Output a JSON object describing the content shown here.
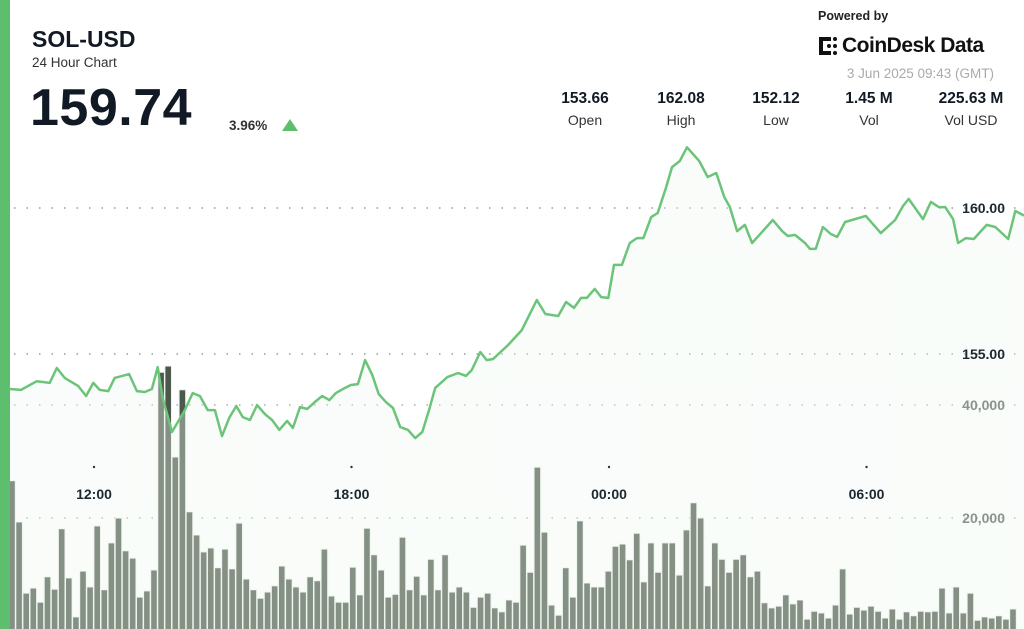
{
  "header": {
    "symbol": "SOL-USD",
    "subtitle": "24 Hour Chart",
    "price": "159.74",
    "change": "3.96%",
    "change_direction": "up"
  },
  "stats": [
    {
      "value": "153.66",
      "label": "Open"
    },
    {
      "value": "162.08",
      "label": "High"
    },
    {
      "value": "152.12",
      "label": "Low"
    },
    {
      "value": "1.45 M",
      "label": "Vol"
    },
    {
      "value": "225.63 M",
      "label": "Vol USD"
    }
  ],
  "branding": {
    "powered_by": "Powered by",
    "logo_text": "CoinDesk Data",
    "timestamp": "3 Jun 2025 09:43 (GMT)"
  },
  "colors": {
    "accent": "#5dbf6d",
    "line": "#6cc47a",
    "volume_bar": "#4d584c"
  },
  "chart_data": {
    "type": "area",
    "x_ticks": [
      "12:00",
      "18:00",
      "00:00",
      "06:00"
    ],
    "price_axis": {
      "ticks": [
        "155.00",
        "160.00"
      ],
      "tick_values": [
        155,
        160
      ]
    },
    "volume_axis": {
      "ticks": [
        "20,000",
        "40,000"
      ],
      "tick_values": [
        20000,
        40000
      ]
    },
    "grid": "dotted horizontal",
    "price_series": [
      [
        "10:03",
        153.8
      ],
      [
        "10:18",
        153.77
      ],
      [
        "10:40",
        154.07
      ],
      [
        "10:58",
        154.01
      ],
      [
        "11:08",
        154.52
      ],
      [
        "11:19",
        154.18
      ],
      [
        "11:38",
        153.9
      ],
      [
        "11:49",
        153.56
      ],
      [
        "11:59",
        154.01
      ],
      [
        "12:08",
        153.77
      ],
      [
        "12:20",
        153.73
      ],
      [
        "12:29",
        154.18
      ],
      [
        "12:49",
        154.31
      ],
      [
        "13:00",
        153.73
      ],
      [
        "13:11",
        153.7
      ],
      [
        "13:21",
        153.8
      ],
      [
        "13:29",
        154.55
      ],
      [
        "13:36",
        153.49
      ],
      [
        "13:49",
        152.33
      ],
      [
        "14:07",
        153.08
      ],
      [
        "14:18",
        153.66
      ],
      [
        "14:28",
        153.56
      ],
      [
        "14:39",
        153.08
      ],
      [
        "14:49",
        153.08
      ],
      [
        "14:59",
        152.19
      ],
      [
        "15:09",
        152.81
      ],
      [
        "15:19",
        153.22
      ],
      [
        "15:28",
        152.84
      ],
      [
        "15:38",
        152.74
      ],
      [
        "15:48",
        153.25
      ],
      [
        "15:59",
        152.94
      ],
      [
        "16:09",
        152.74
      ],
      [
        "16:19",
        152.4
      ],
      [
        "16:30",
        152.71
      ],
      [
        "16:38",
        152.47
      ],
      [
        "16:48",
        153.18
      ],
      [
        "16:58",
        153.12
      ],
      [
        "17:09",
        153.36
      ],
      [
        "17:19",
        153.56
      ],
      [
        "17:29",
        153.42
      ],
      [
        "17:38",
        153.66
      ],
      [
        "17:50",
        153.83
      ],
      [
        "17:59",
        153.94
      ],
      [
        "18:09",
        153.97
      ],
      [
        "18:19",
        154.79
      ],
      [
        "18:29",
        154.28
      ],
      [
        "18:38",
        153.63
      ],
      [
        "18:48",
        153.36
      ],
      [
        "18:58",
        153.15
      ],
      [
        "19:08",
        152.5
      ],
      [
        "19:19",
        152.4
      ],
      [
        "19:29",
        152.12
      ],
      [
        "19:39",
        152.33
      ],
      [
        "19:48",
        153.05
      ],
      [
        "19:57",
        153.84
      ],
      [
        "20:14",
        154.21
      ],
      [
        "20:29",
        154.35
      ],
      [
        "20:40",
        154.25
      ],
      [
        "20:48",
        154.45
      ],
      [
        "21:00",
        155.07
      ],
      [
        "21:09",
        154.79
      ],
      [
        "21:18",
        154.83
      ],
      [
        "21:39",
        155.31
      ],
      [
        "21:58",
        155.82
      ],
      [
        "22:19",
        156.85
      ],
      [
        "22:31",
        156.37
      ],
      [
        "22:49",
        156.3
      ],
      [
        "23:00",
        156.78
      ],
      [
        "23:11",
        156.58
      ],
      [
        "23:21",
        156.92
      ],
      [
        "23:29",
        156.92
      ],
      [
        "23:40",
        157.23
      ],
      [
        "23:49",
        156.95
      ],
      [
        "23:59",
        156.92
      ],
      [
        "00:07",
        158.05
      ],
      [
        "00:18",
        158.05
      ],
      [
        "00:29",
        158.8
      ],
      [
        "00:39",
        158.97
      ],
      [
        "00:48",
        158.97
      ],
      [
        "00:59",
        159.69
      ],
      [
        "01:08",
        159.83
      ],
      [
        "01:20",
        160.72
      ],
      [
        "01:28",
        161.4
      ],
      [
        "01:39",
        161.61
      ],
      [
        "01:49",
        162.08
      ],
      [
        "02:06",
        161.61
      ],
      [
        "02:18",
        161.06
      ],
      [
        "02:30",
        161.2
      ],
      [
        "02:41",
        160.38
      ],
      [
        "02:49",
        160.03
      ],
      [
        "02:59",
        159.21
      ],
      [
        "03:10",
        159.42
      ],
      [
        "03:20",
        158.8
      ],
      [
        "03:34",
        159.18
      ],
      [
        "03:49",
        159.59
      ],
      [
        "04:02",
        159.21
      ],
      [
        "04:10",
        159.04
      ],
      [
        "04:20",
        159.08
      ],
      [
        "04:34",
        158.8
      ],
      [
        "04:41",
        158.6
      ],
      [
        "04:49",
        158.6
      ],
      [
        "04:59",
        159.35
      ],
      [
        "05:10",
        159.11
      ],
      [
        "05:19",
        159.01
      ],
      [
        "05:30",
        159.52
      ],
      [
        "05:59",
        159.73
      ],
      [
        "06:20",
        159.14
      ],
      [
        "06:40",
        159.59
      ],
      [
        "06:51",
        160.07
      ],
      [
        "06:59",
        160.31
      ],
      [
        "07:19",
        159.62
      ],
      [
        "07:30",
        160.21
      ],
      [
        "07:41",
        160.03
      ],
      [
        "07:50",
        160.03
      ],
      [
        "08:01",
        159.62
      ],
      [
        "08:08",
        158.8
      ],
      [
        "08:19",
        158.97
      ],
      [
        "08:30",
        158.94
      ],
      [
        "08:48",
        159.42
      ],
      [
        "09:00",
        159.35
      ],
      [
        "09:18",
        158.94
      ],
      [
        "09:28",
        159.9
      ],
      [
        "09:43",
        159.74
      ]
    ],
    "volume_series": [
      26600,
      19300,
      6700,
      7600,
      5100,
      9600,
      7400,
      18100,
      9400,
      2500,
      10600,
      7800,
      18600,
      7300,
      15600,
      20000,
      14200,
      12900,
      6000,
      7100,
      10800,
      45800,
      46900,
      30800,
      42700,
      21100,
      17000,
      14000,
      14700,
      11200,
      14500,
      11000,
      19100,
      9200,
      7300,
      5800,
      6900,
      8000,
      11500,
      9200,
      7800,
      6900,
      9600,
      8900,
      14500,
      6200,
      5100,
      5100,
      11300,
      6400,
      18200,
      13500,
      10800,
      6000,
      6500,
      16600,
      7300,
      9700,
      6400,
      12700,
      7300,
      13500,
      6900,
      7800,
      6900,
      4200,
      6000,
      6700,
      4100,
      3400,
      5500,
      5100,
      15200,
      10400,
      29000,
      17500,
      4600,
      2800,
      11200,
      6000,
      19500,
      8500,
      7800,
      7800,
      10600,
      15000,
      15400,
      12600,
      17300,
      8700,
      15600,
      10400,
      15600,
      15600,
      9900,
      17900,
      22700,
      20000,
      8000,
      15600,
      12700,
      10400,
      12700,
      13500,
      9600,
      10600,
      5000,
      4100,
      4400,
      6400,
      4800,
      5500,
      2100,
      3500,
      3200,
      2300,
      4600,
      11000,
      3000,
      4200,
      3700,
      4400,
      3500,
      2300,
      3900,
      2100,
      3400,
      2700,
      3500,
      3400,
      3500,
      7600,
      3200,
      7800,
      3200,
      6700,
      1900,
      2500,
      2300,
      2700,
      2100,
      3900
    ]
  }
}
